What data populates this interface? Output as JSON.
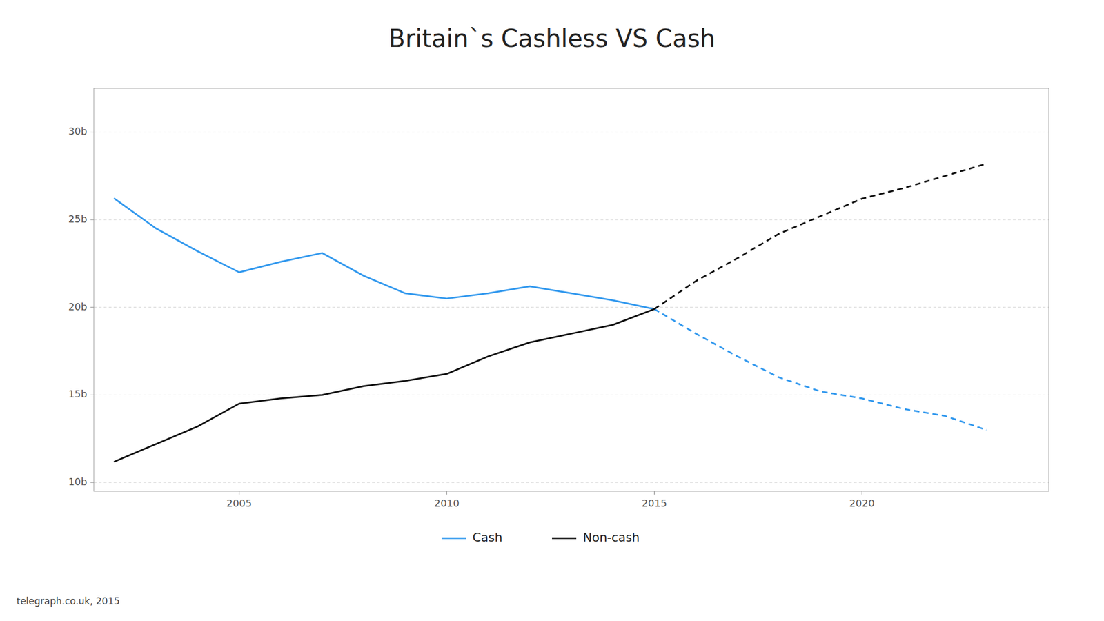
{
  "chart_data": {
    "type": "line",
    "title": "Britain`s Cashless VS Cash",
    "annotations": [
      "telegraph.co.uk, 2015"
    ],
    "xlim": [
      2001.5,
      2024.5
    ],
    "ylim": [
      9.5,
      32.5
    ],
    "xticks": [
      2005,
      2010,
      2015,
      2020
    ],
    "yticks": [
      {
        "value": 10,
        "label": "10b"
      },
      {
        "value": 15,
        "label": "15b"
      },
      {
        "value": 20,
        "label": "20b"
      },
      {
        "value": 25,
        "label": "25b"
      },
      {
        "value": 30,
        "label": "30b"
      }
    ],
    "grid": true,
    "legend": "bottom",
    "series": [
      {
        "name": "Cash",
        "color": "#3399ee",
        "line_style": "solid",
        "x": [
          2002,
          2003,
          2004,
          2005,
          2006,
          2007,
          2008,
          2009,
          2010,
          2011,
          2012,
          2013,
          2014,
          2015
        ],
        "values": [
          26.2,
          24.5,
          23.2,
          22.0,
          22.6,
          23.1,
          21.8,
          20.8,
          20.5,
          20.8,
          21.2,
          20.8,
          20.4,
          19.9
        ]
      },
      {
        "name": "Cash",
        "color": "#3399ee",
        "line_style": "dashed",
        "x": [
          2015,
          2016,
          2017,
          2018,
          2019,
          2020,
          2021,
          2022,
          2023
        ],
        "values": [
          19.9,
          18.5,
          17.2,
          16.0,
          15.2,
          14.8,
          14.2,
          13.8,
          13.0
        ]
      },
      {
        "name": "Non-cash",
        "color": "#111111",
        "line_style": "solid",
        "x": [
          2002,
          2003,
          2004,
          2005,
          2006,
          2007,
          2008,
          2009,
          2010,
          2011,
          2012,
          2013,
          2014,
          2015
        ],
        "values": [
          11.2,
          12.2,
          13.2,
          14.5,
          14.8,
          15.0,
          15.5,
          15.8,
          16.2,
          17.2,
          18.0,
          18.5,
          19.0,
          19.9
        ]
      },
      {
        "name": "Non-cash",
        "color": "#111111",
        "line_style": "dashed",
        "x": [
          2015,
          2016,
          2017,
          2018,
          2019,
          2020,
          2021,
          2022,
          2023
        ],
        "values": [
          19.9,
          21.5,
          22.8,
          24.2,
          25.2,
          26.2,
          26.8,
          27.5,
          28.2
        ]
      }
    ]
  }
}
